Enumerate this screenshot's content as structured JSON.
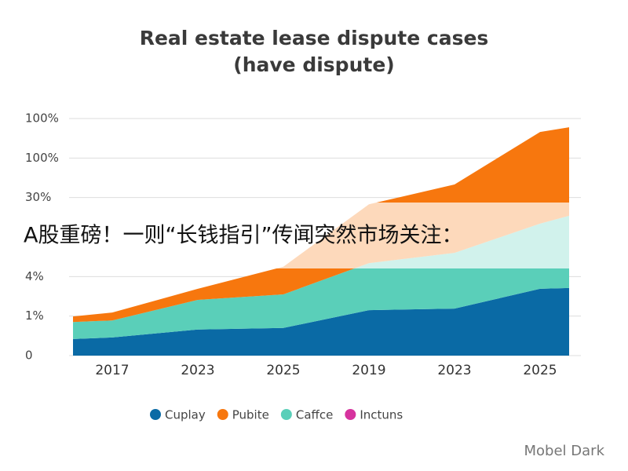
{
  "chart_data": {
    "type": "stacked_area",
    "title": "Real estate lease dispute cases",
    "subtitle": "(have dispute)",
    "categories": [
      null,
      "2017",
      "2023",
      "2025",
      "2019",
      "2023",
      "2025",
      null
    ],
    "series": [
      {
        "name": "Cuplay",
        "color": "#0a6aa5",
        "values": [
          0.42,
          0.46,
          0.66,
          0.7,
          1.15,
          1.19,
          1.69,
          1.71
        ]
      },
      {
        "name": "Pubite",
        "color": "#f7770e",
        "values": [
          0.14,
          0.2,
          0.28,
          0.7,
          1.49,
          1.73,
          2.32,
          2.24
        ]
      },
      {
        "name": "Caffce",
        "color": "#5acfb9",
        "values": [
          0.43,
          0.43,
          0.75,
          0.85,
          1.19,
          1.41,
          1.65,
          1.83
        ]
      },
      {
        "name": "Inctuns",
        "color": "#d6339e",
        "values": [
          null,
          null,
          null,
          null,
          null,
          null,
          null,
          null
        ]
      }
    ],
    "stack_order": [
      0,
      2,
      1,
      3
    ],
    "ylim": [
      0,
      6
    ],
    "yticks": [
      0,
      {
        "value": 1,
        "label": "1%"
      },
      {
        "value": 2,
        "label": "4%"
      },
      {
        "value": 4,
        "label": "30%"
      },
      {
        "value": 5,
        "label": "100%"
      },
      {
        "value": 6,
        "label": "100%"
      }
    ],
    "grid": true,
    "legend": "bottom",
    "overlay_text": "A股重磅！一则“长钱指引”传闻突然市场关注：",
    "watermark": "Mobel Dark"
  }
}
